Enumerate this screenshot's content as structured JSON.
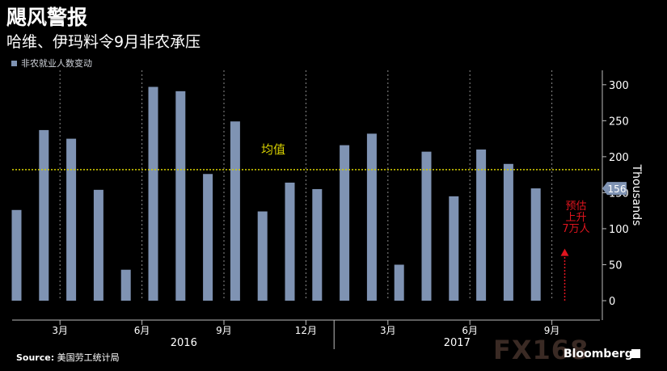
{
  "header": {
    "title": "飓风警报",
    "subtitle": "哈维、伊玛料令9月非农承压"
  },
  "legend": {
    "label": "非农就业人数变动"
  },
  "footer": {
    "source_label": "Source:",
    "source_text": "美国劳工统计局",
    "brand_fx": "FX168",
    "brand_bloomberg": "Bloomberg"
  },
  "colors": {
    "bar": "#7f93b3",
    "mean_line": "#d6cf00",
    "annotation": "#e0141e",
    "last_value_badge": "#7f93b3"
  },
  "chart_data": {
    "type": "bar",
    "series": [
      {
        "name": "非农就业人数变动",
        "values": [
          126,
          237,
          225,
          154,
          43,
          297,
          291,
          176,
          249,
          124,
          164,
          155,
          216,
          232,
          50,
          207,
          145,
          210,
          190,
          156
        ]
      }
    ],
    "x_ticks": [
      {
        "label": "3月",
        "index": 2
      },
      {
        "label": "6月",
        "index": 5
      },
      {
        "label": "9月",
        "index": 8
      },
      {
        "label": "12月",
        "index": 11
      },
      {
        "label": "3月",
        "index": 14
      },
      {
        "label": "6月",
        "index": 17
      },
      {
        "label": "9月",
        "index": 20
      }
    ],
    "year_labels": [
      {
        "label": "2016",
        "index": 6
      },
      {
        "label": "2017",
        "index": 16
      }
    ],
    "ylim": [
      0,
      320
    ],
    "y_ticks": [
      0,
      50,
      100,
      150,
      200,
      250,
      300
    ],
    "ylabel": "Thousands",
    "mean": {
      "value": 182,
      "label": "均值"
    },
    "last_value": "156",
    "forecast": {
      "index": 20,
      "value": 70,
      "label_lines": [
        "预估",
        "上升",
        "7万人"
      ]
    },
    "grid": "dashed vertical at quarter months",
    "legend_position": "top-left"
  }
}
